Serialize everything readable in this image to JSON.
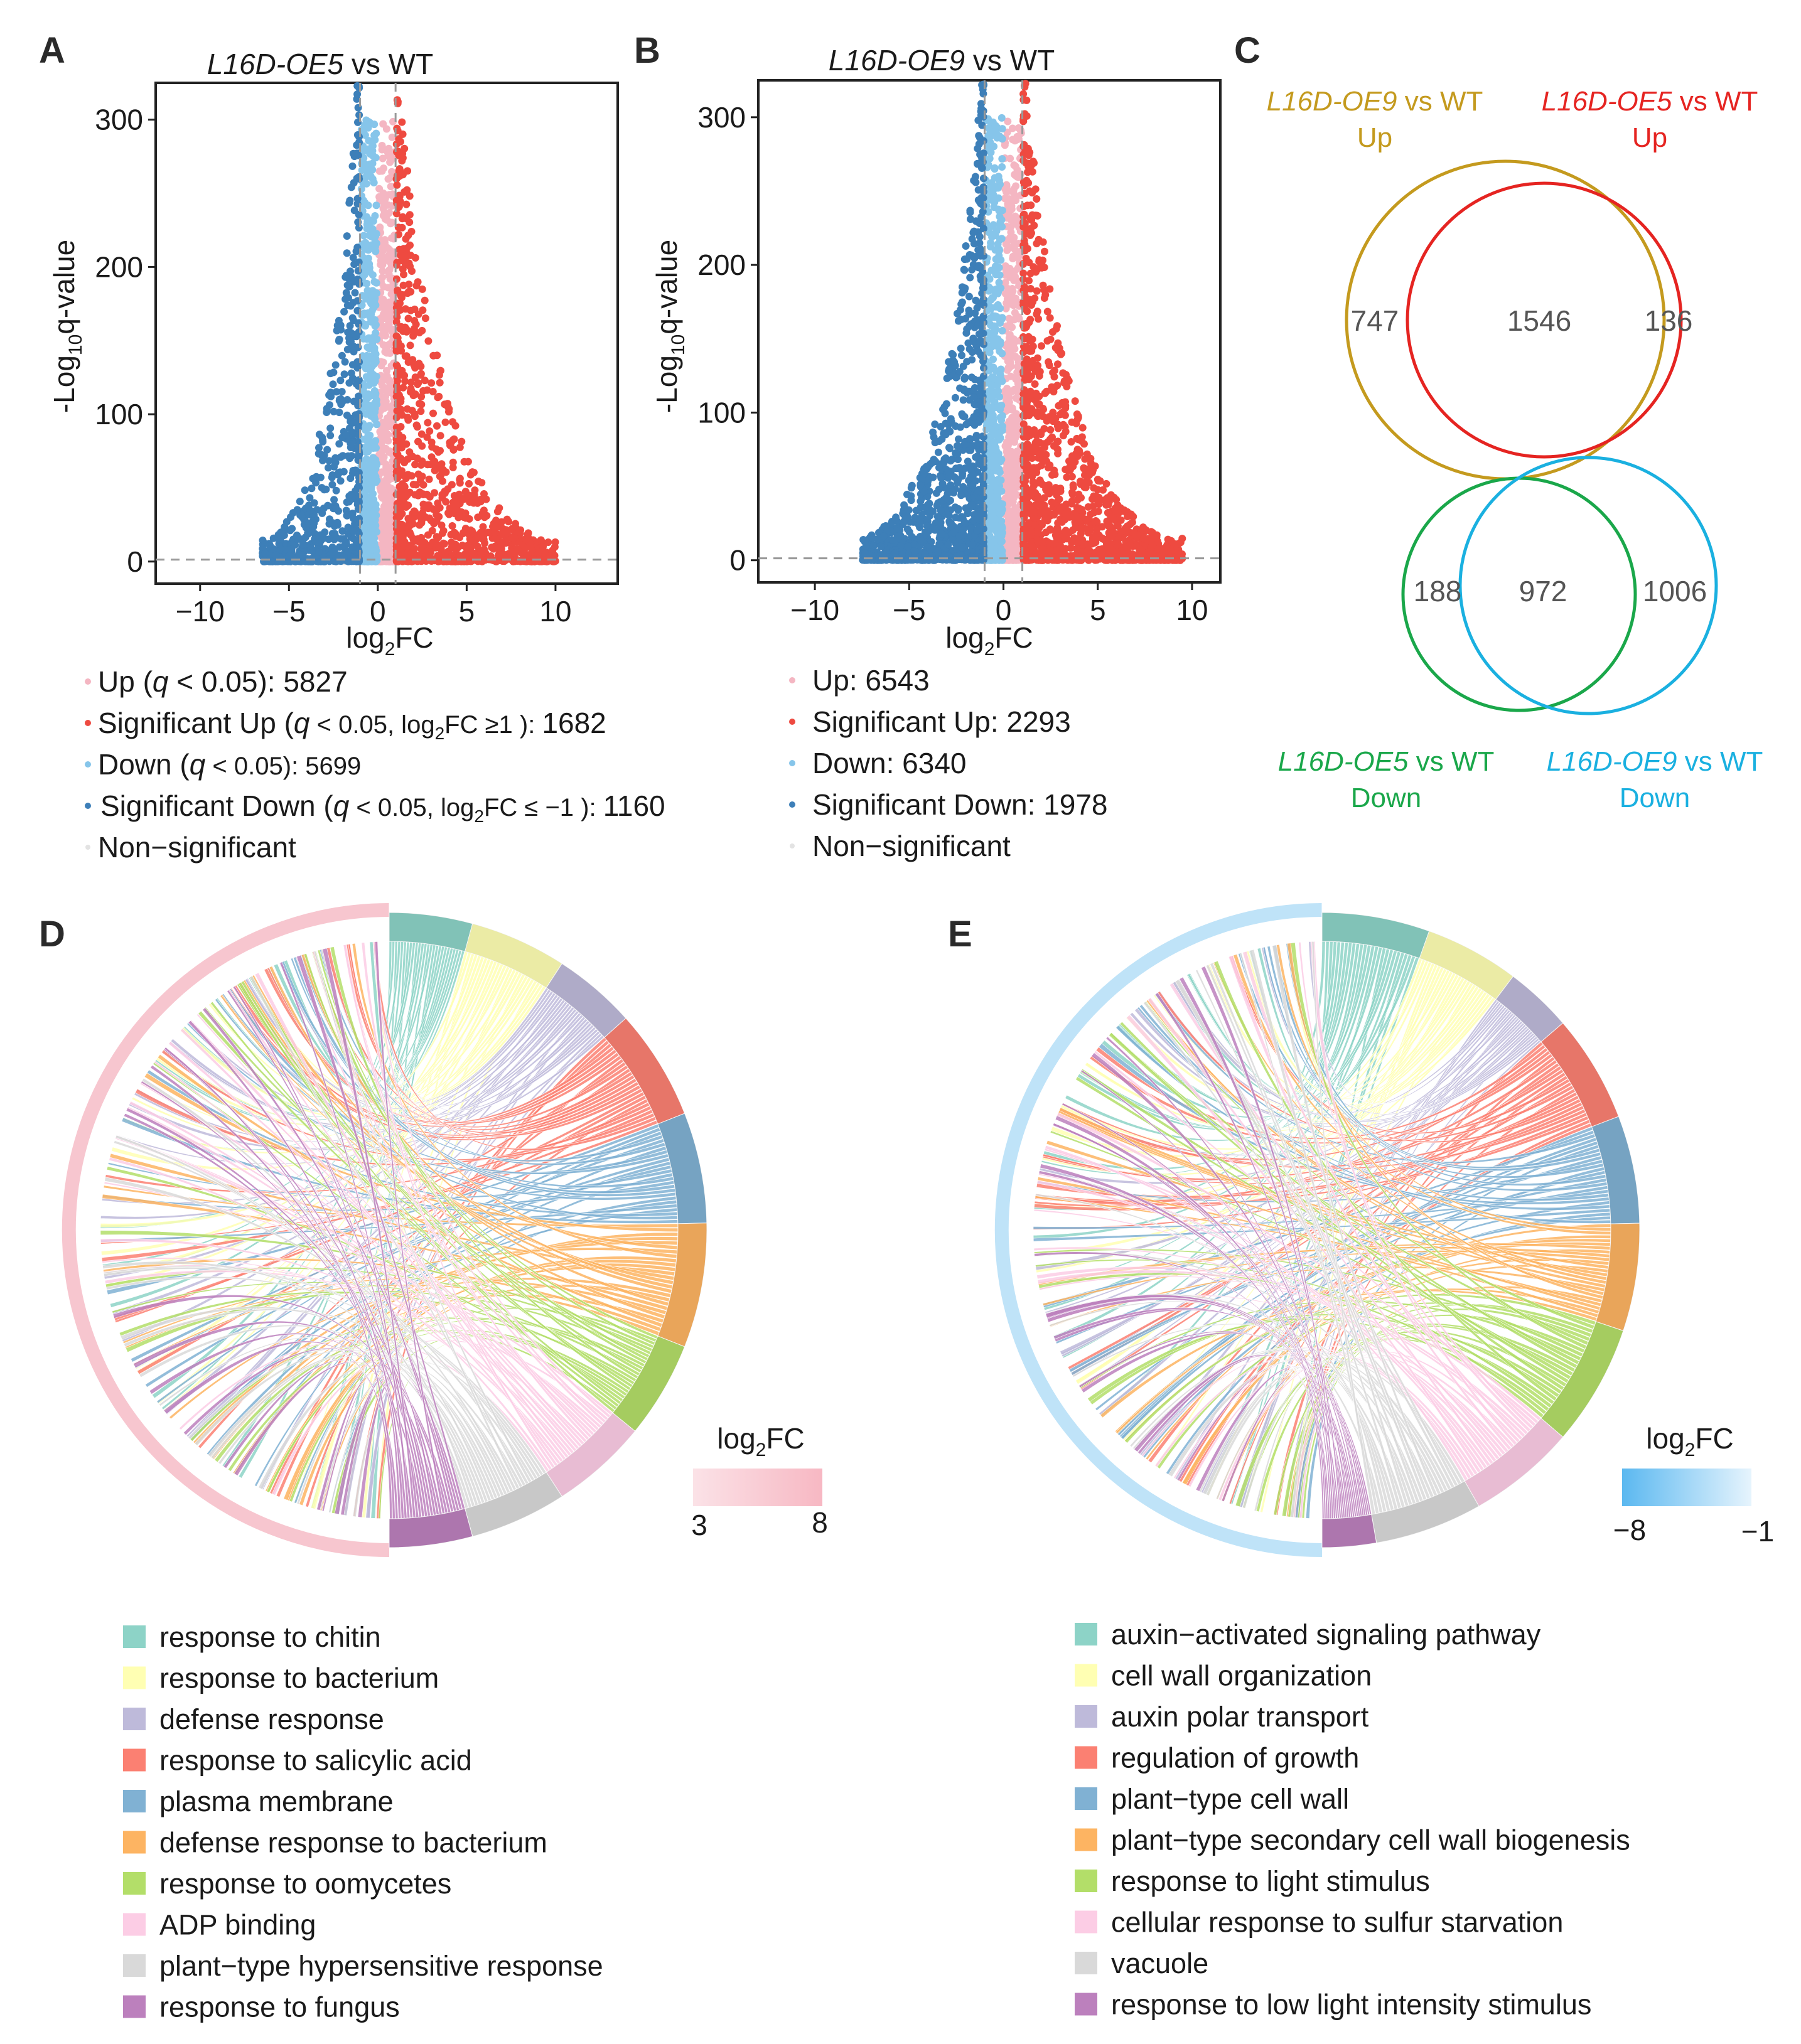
{
  "panels": {
    "A": "A",
    "B": "B",
    "C": "C",
    "D": "D",
    "E": "E"
  },
  "chart_data": [
    {
      "id": "A",
      "type": "scatter",
      "title_italic": "L16D-OE5",
      "title_rest": " vs WT",
      "xlabel_base": "log",
      "xlabel_sub": "2",
      "xlabel_rest": "FC",
      "ylabel_pre": "-Log",
      "ylabel_sub": "10",
      "ylabel_rest": "q-value",
      "xlim": [
        -12.5,
        13.5
      ],
      "ylim": [
        -15,
        325
      ],
      "xticks": [
        -10,
        -5,
        0,
        5,
        10
      ],
      "xtick_labels": [
        "−10",
        "−5",
        "0",
        "5",
        "10"
      ],
      "yticks": [
        0,
        100,
        200,
        300
      ],
      "ytick_labels": [
        "0",
        "100",
        "200",
        "300"
      ],
      "threshold_lines": {
        "vertical": [
          -1,
          1
        ],
        "horizontal": 1.3
      },
      "categories": [
        "Up",
        "Significant Up",
        "Down",
        "Significant Down",
        "Non-significant"
      ],
      "colors": {
        "up": "#f4b6c2",
        "sigUp": "#ee4a40",
        "down": "#86c5ea",
        "sigDown": "#3d7fb8",
        "ns": "#e3e3e3"
      },
      "series": [
        {
          "name": "Up (q < 0.05)",
          "count": 5827
        },
        {
          "name": "Significant Up (q < 0.05, log2FC ≥1 )",
          "count": 1682
        },
        {
          "name": "Down (q < 0.05)",
          "count": 5699
        },
        {
          "name": "Significant Down (q < 0.05, log2FC ≤ −1 )",
          "count": 1160
        },
        {
          "name": "Non−significant",
          "count": null
        }
      ],
      "max_abs_log2fc": {
        "up": 10,
        "down": -6.5
      }
    },
    {
      "id": "B",
      "type": "scatter",
      "title_italic": "L16D-OE9",
      "title_rest": " vs WT",
      "xlabel_base": "log",
      "xlabel_sub": "2",
      "xlabel_rest": "FC",
      "ylabel_pre": "-Log",
      "ylabel_sub": "10",
      "ylabel_rest": "q-value",
      "xlim": [
        -13,
        11.5
      ],
      "ylim": [
        -15,
        325
      ],
      "xticks": [
        -10,
        -5,
        0,
        5,
        10
      ],
      "xtick_labels": [
        "−10",
        "−5",
        "0",
        "5",
        "10"
      ],
      "yticks": [
        0,
        100,
        200,
        300
      ],
      "ytick_labels": [
        "0",
        "100",
        "200",
        "300"
      ],
      "threshold_lines": {
        "vertical": [
          -1,
          1
        ],
        "horizontal": 1.3
      },
      "colors": {
        "up": "#f4b6c2",
        "sigUp": "#ee4a40",
        "down": "#86c5ea",
        "sigDown": "#3d7fb8",
        "ns": "#e3e3e3"
      },
      "series": [
        {
          "name": "Up",
          "count": 6543
        },
        {
          "name": "Significant Up",
          "count": 2293
        },
        {
          "name": "Down",
          "count": 6340
        },
        {
          "name": "Significant Down",
          "count": 1978
        },
        {
          "name": "Non−significant",
          "count": null
        }
      ],
      "max_abs_log2fc": {
        "up": 9.5,
        "down": -7.5
      }
    },
    {
      "id": "C",
      "type": "venn",
      "sets": [
        {
          "italic": "L16D-OE9",
          "rest": " vs WT",
          "line2": "Up",
          "color": "#c49a1e"
        },
        {
          "italic": "L16D-OE5",
          "rest": " vs WT",
          "line2": "Up",
          "color": "#e52421"
        },
        {
          "italic": "L16D-OE5",
          "rest": " vs WT",
          "line2": "Down",
          "color": "#1aa74a"
        },
        {
          "italic": "L16D-OE9",
          "rest": " vs WT",
          "line2": "Down",
          "color": "#1ab0e0"
        }
      ],
      "up_overlap": {
        "only_oe9": "747",
        "both": "1546",
        "only_oe5": "136"
      },
      "down_overlap": {
        "only_oe5": "188",
        "both": "972",
        "only_oe9": "1006"
      }
    },
    {
      "id": "D",
      "type": "chord",
      "legend_title_base": "log",
      "legend_title_sub": "2",
      "legend_title_rest": "FC",
      "scale_min": "3",
      "scale_max": "8",
      "scale_colors": [
        "#fbe2e7",
        "#f7b8c3"
      ],
      "ring_color": "#f7c6cf",
      "terms": [
        {
          "label": "response to chitin",
          "color": "#8dd3c7"
        },
        {
          "label": "response to bacterium",
          "color": "#ffffb3"
        },
        {
          "label": "defense response",
          "color": "#bebada"
        },
        {
          "label": "response to salicylic acid",
          "color": "#fb8072"
        },
        {
          "label": "plasma membrane",
          "color": "#80b1d3"
        },
        {
          "label": "defense response to bacterium",
          "color": "#fdb462"
        },
        {
          "label": "response to oomycetes",
          "color": "#b3de69"
        },
        {
          "label": "ADP binding",
          "color": "#fccde5"
        },
        {
          "label": "plant−type hypersensitive response",
          "color": "#d9d9d9"
        },
        {
          "label": "response to fungus",
          "color": "#bc80bd"
        }
      ],
      "term_sizes": [
        6,
        7,
        6,
        8,
        8,
        9,
        7,
        7,
        7,
        6
      ]
    },
    {
      "id": "E",
      "type": "chord",
      "legend_title_base": "log",
      "legend_title_sub": "2",
      "legend_title_rest": "FC",
      "scale_min": "−8",
      "scale_max": "−1",
      "scale_colors": [
        "#5bb8f0",
        "#e6f4fd"
      ],
      "ring_color": "#bfe3f8",
      "terms": [
        {
          "label": "auxin−activated signaling pathway",
          "color": "#8dd3c7"
        },
        {
          "label": "cell wall organization",
          "color": "#ffffb3"
        },
        {
          "label": "auxin polar transport",
          "color": "#bebada"
        },
        {
          "label": "regulation of growth",
          "color": "#fb8072"
        },
        {
          "label": "plant−type cell wall",
          "color": "#80b1d3"
        },
        {
          "label": "plant−type secondary cell wall biogenesis",
          "color": "#fdb462"
        },
        {
          "label": "response to light stimulus",
          "color": "#b3de69"
        },
        {
          "label": "cellular response to sulfur starvation",
          "color": "#fccde5"
        },
        {
          "label": "vacuole",
          "color": "#d9d9d9"
        },
        {
          "label": "response to low light intensity stimulus",
          "color": "#bc80bd"
        }
      ],
      "term_sizes": [
        8,
        7,
        5,
        8,
        8,
        8,
        9,
        8,
        8,
        4
      ]
    }
  ]
}
